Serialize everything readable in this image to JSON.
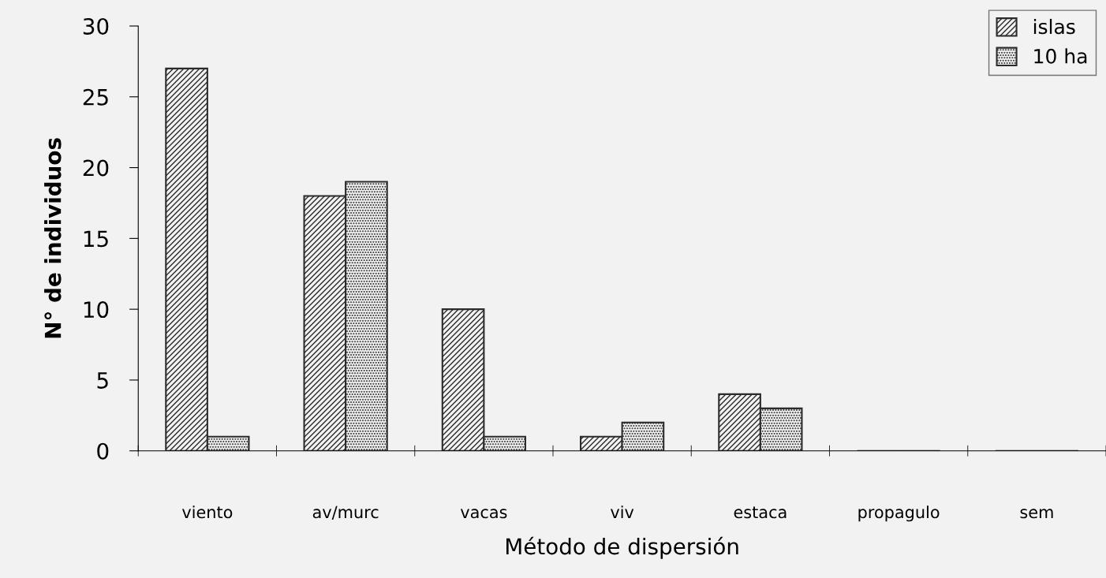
{
  "chart_data": {
    "type": "bar",
    "xlabel": "Método de dispersión",
    "ylabel": "N° de individuos",
    "categories": [
      "viento",
      "av/murc",
      "vacas",
      "viv",
      "estaca",
      "propagulo",
      "sem"
    ],
    "series": [
      {
        "name": "islas",
        "color": "#2b2b2b",
        "values": [
          27,
          18,
          10,
          1,
          4,
          0,
          0
        ]
      },
      {
        "name": "10 ha",
        "color": "#2b2b2b",
        "values": [
          1,
          19,
          1,
          2,
          3,
          0,
          0
        ]
      }
    ],
    "ylim": [
      0,
      30
    ],
    "yticks": [
      0,
      5,
      10,
      15,
      20,
      25,
      30
    ],
    "grid": false,
    "legend": "top right"
  }
}
